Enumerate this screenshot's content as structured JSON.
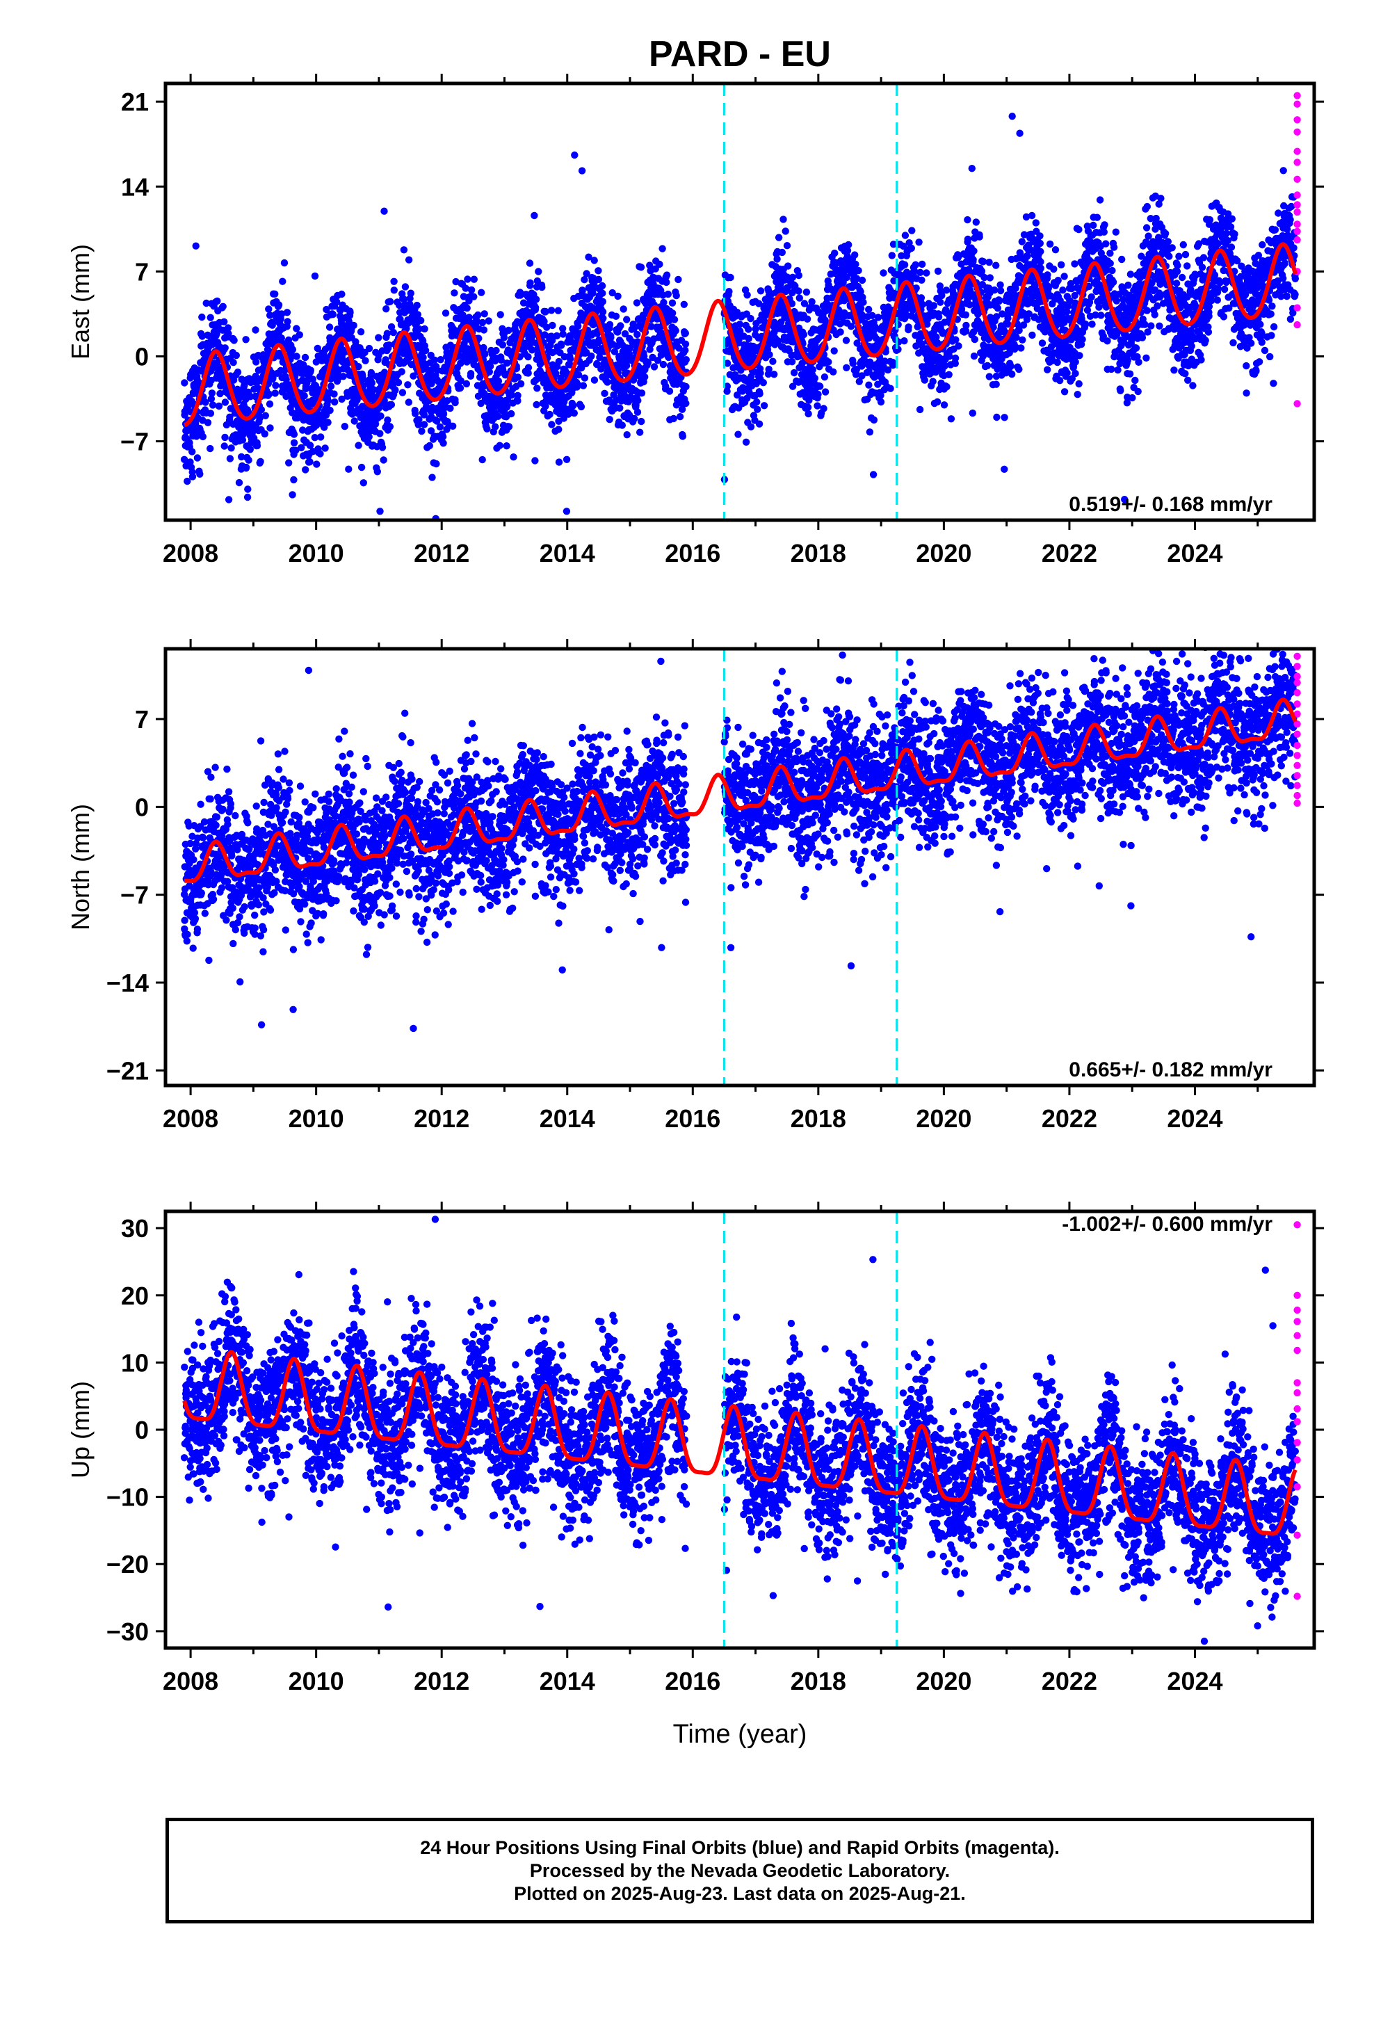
{
  "title": "PARD - EU",
  "x_axis_label": "Time (year)",
  "footer": {
    "line1": "24 Hour Positions Using Final Orbits (blue) and Rapid Orbits (magenta).",
    "line2": "Processed by the Nevada Geodetic Laboratory.",
    "line3": "Plotted on 2025-Aug-23. Last data on 2025-Aug-21."
  },
  "colors": {
    "final_orbits": "#0000ff",
    "rapid_orbits": "#ff00ff",
    "model_fit": "#ff0000",
    "equipment_change": "#00e5ee"
  },
  "chart_data": [
    {
      "type": "scatter",
      "ylabel": "East (mm)",
      "xlim": [
        2007.6,
        2025.9
      ],
      "ylim": [
        -13.5,
        22.5
      ],
      "x_ticks": [
        2008,
        2010,
        2012,
        2014,
        2016,
        2018,
        2020,
        2022,
        2024
      ],
      "y_ticks": [
        -7,
        0,
        7,
        14,
        21
      ],
      "rate_label": "0.519+/- 0.168 mm/yr",
      "rate": 0.519,
      "vertical_lines": [
        2016.5,
        2019.25
      ],
      "model": {
        "offset": -3.2,
        "rate": 0.519,
        "amplitude": 2.9,
        "phase_year": 2008.4,
        "semiannual": 0.3
      },
      "scatter_noise": 2.3,
      "data_span": [
        2007.9,
        2025.6
      ],
      "gap": [
        2015.9,
        2016.5
      ],
      "rapid_points": [
        21.5,
        20.8,
        19.5,
        18.5,
        16.9,
        16.0,
        14.6,
        13.3,
        12.5,
        11.9,
        10.9,
        10.3,
        9.6,
        7.0,
        4.0,
        2.6,
        -3.9
      ]
    },
    {
      "type": "scatter",
      "ylabel": "North (mm)",
      "xlim": [
        2007.6,
        2025.9
      ],
      "ylim": [
        -22.2,
        12.6
      ],
      "x_ticks": [
        2008,
        2010,
        2012,
        2014,
        2016,
        2018,
        2020,
        2022,
        2024
      ],
      "y_ticks": [
        -21,
        -14,
        -7,
        0,
        7
      ],
      "rate_label": "0.665+/- 0.182 mm/yr",
      "rate": 0.665,
      "vertical_lines": [
        2016.5,
        2019.25
      ],
      "model": {
        "offset": -5.2,
        "rate": 0.665,
        "amplitude": 1.4,
        "phase_year": 2008.4,
        "semiannual": 0.5
      },
      "scatter_noise": 2.6,
      "data_span": [
        2007.9,
        2025.6
      ],
      "gap": [
        2015.9,
        2016.5
      ],
      "rapid_points": [
        12.0,
        11.2,
        10.4,
        9.9,
        9.1,
        8.2,
        7.4,
        6.6,
        5.8,
        4.9,
        4.1,
        3.3,
        2.5,
        1.7,
        0.9,
        0.3
      ]
    },
    {
      "type": "scatter",
      "ylabel": "Up (mm)",
      "xlim": [
        2007.6,
        2025.9
      ],
      "ylim": [
        -32.5,
        32.5
      ],
      "x_ticks": [
        2008,
        2010,
        2012,
        2014,
        2016,
        2018,
        2020,
        2022,
        2024
      ],
      "y_ticks": [
        -30,
        -20,
        -10,
        0,
        10,
        20,
        30
      ],
      "rate_label": "-1.002+/- 0.600 mm/yr",
      "rate": -1.002,
      "vertical_lines": [
        2016.5,
        2019.25
      ],
      "model": {
        "offset": 6.0,
        "rate": -1.002,
        "amplitude": 5.2,
        "phase_year": 2008.65,
        "semiannual": 1.4
      },
      "scatter_noise": 5.2,
      "data_span": [
        2007.9,
        2025.6
      ],
      "gap": [
        2015.9,
        2016.5
      ],
      "rapid_points": [
        30.5,
        20.0,
        17.8,
        16.1,
        14.0,
        11.8,
        7.0,
        5.5,
        3.1,
        1.2,
        -1.9,
        -4.5,
        -8.5,
        -15.7,
        -24.8
      ]
    }
  ]
}
